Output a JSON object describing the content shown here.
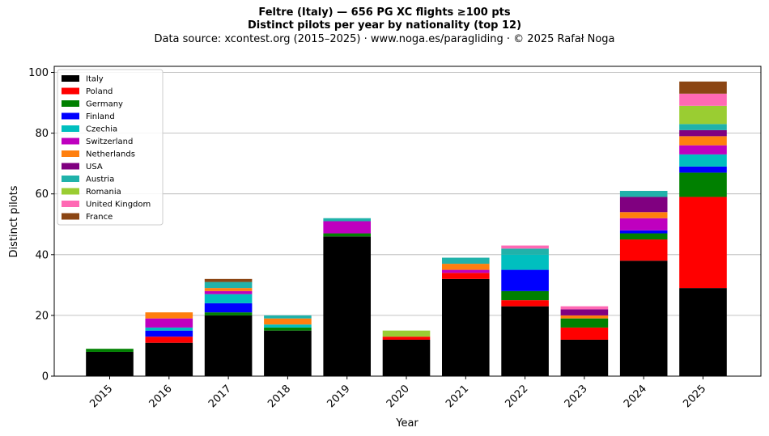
{
  "chart_data": {
    "type": "bar",
    "stacked": true,
    "title": "Feltre (Italy)  —  656 PG XC flights ≥100 pts",
    "subtitle": "Distinct pilots per year by nationality (top 12)",
    "source_note": "Data source: xcontest.org (2015–2025)  ·  www.noga.es/paragliding  ·  © 2025 Rafał Noga",
    "xlabel": "Year",
    "ylabel": "Distinct pilots",
    "ylim": [
      0,
      102
    ],
    "yticks": [
      0,
      20,
      40,
      60,
      80,
      100
    ],
    "grid": "horizontal",
    "legend_position": "upper-left",
    "categories": [
      "2015",
      "2016",
      "2017",
      "2018",
      "2019",
      "2020",
      "2021",
      "2022",
      "2023",
      "2024",
      "2025"
    ],
    "series": [
      {
        "name": "Italy",
        "color": "#000000",
        "values": [
          8,
          11,
          20,
          15,
          46,
          12,
          32,
          23,
          12,
          38,
          29
        ]
      },
      {
        "name": "Poland",
        "color": "#ff0000",
        "values": [
          0,
          2,
          0,
          0,
          0,
          1,
          2,
          2,
          4,
          7,
          30
        ]
      },
      {
        "name": "Germany",
        "color": "#008000",
        "values": [
          1,
          0,
          1,
          1,
          1,
          0,
          0,
          3,
          3,
          2,
          8
        ]
      },
      {
        "name": "Finland",
        "color": "#0000ff",
        "values": [
          0,
          2,
          3,
          0,
          0,
          0,
          0,
          7,
          0,
          1,
          2
        ]
      },
      {
        "name": "Czechia",
        "color": "#00bfbf",
        "values": [
          0,
          1,
          3,
          1,
          0,
          0,
          0,
          5,
          0,
          0,
          4
        ]
      },
      {
        "name": "Switzerland",
        "color": "#bf00bf",
        "values": [
          0,
          3,
          1,
          0,
          4,
          0,
          1,
          0,
          0,
          4,
          3
        ]
      },
      {
        "name": "Netherlands",
        "color": "#ff7f0e",
        "values": [
          0,
          2,
          1,
          2,
          0,
          0,
          2,
          0,
          1,
          2,
          3
        ]
      },
      {
        "name": "USA",
        "color": "#800080",
        "values": [
          0,
          0,
          0,
          0,
          0,
          0,
          0,
          0,
          2,
          5,
          2
        ]
      },
      {
        "name": "Austria",
        "color": "#20b2aa",
        "values": [
          0,
          0,
          2,
          1,
          1,
          0,
          2,
          2,
          0,
          2,
          2
        ]
      },
      {
        "name": "Romania",
        "color": "#9acd32",
        "values": [
          0,
          0,
          0,
          0,
          0,
          2,
          0,
          0,
          0,
          0,
          6
        ]
      },
      {
        "name": "United Kingdom",
        "color": "#ff69b4",
        "values": [
          0,
          0,
          0,
          0,
          0,
          0,
          0,
          1,
          1,
          0,
          4
        ]
      },
      {
        "name": "France",
        "color": "#8b4513",
        "values": [
          0,
          0,
          1,
          0,
          0,
          0,
          0,
          0,
          0,
          0,
          4
        ]
      }
    ]
  }
}
